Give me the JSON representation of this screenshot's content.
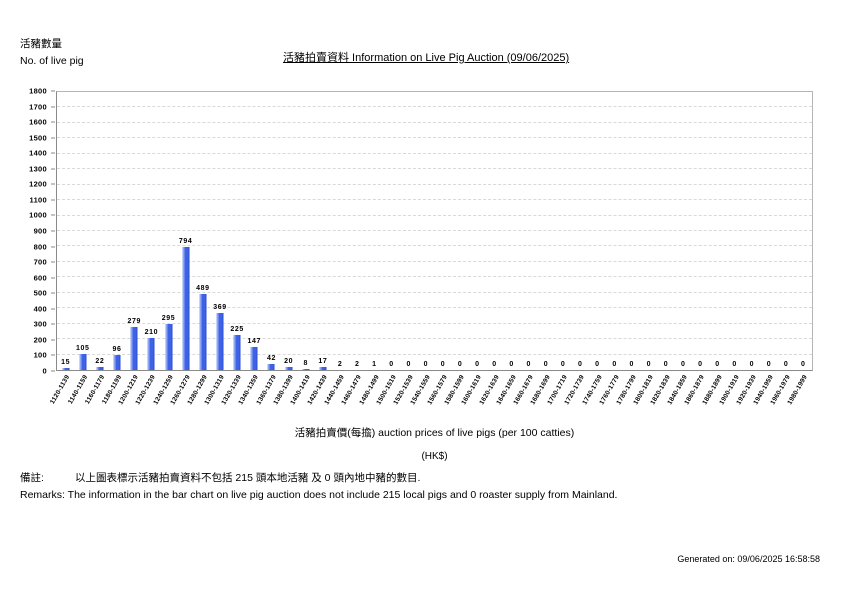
{
  "header": {
    "ylabel_zh": "活豬數量",
    "ylabel_en": "No. of live pig",
    "title": "活豬拍賣資料 Information on Live Pig Auction (09/06/2025)"
  },
  "chart_data": {
    "type": "bar",
    "title": "活豬拍賣資料 Information on Live Pig Auction (09/06/2025)",
    "ylabel": "活豬數量 No. of live pig",
    "xlabel": "活豬拍賣價(每擔) auction prices of live pigs (per 100 catties)",
    "xlabel_unit": "(HK$)",
    "ylim": [
      0,
      1800
    ],
    "ytick_step": 100,
    "grid": "horizontal-dashed",
    "legend": "none",
    "bar_color": "#3d62e8",
    "categories": [
      "1120-1139",
      "1140-1159",
      "1160-1179",
      "1180-1199",
      "1200-1219",
      "1220-1239",
      "1240-1259",
      "1260-1279",
      "1280-1299",
      "1300-1319",
      "1320-1339",
      "1340-1359",
      "1360-1379",
      "1380-1399",
      "1400-1419",
      "1420-1439",
      "1440-1459",
      "1460-1479",
      "1480-1499",
      "1500-1519",
      "1520-1539",
      "1540-1559",
      "1560-1579",
      "1580-1599",
      "1600-1619",
      "1620-1639",
      "1640-1659",
      "1660-1679",
      "1680-1699",
      "1700-1719",
      "1720-1739",
      "1740-1759",
      "1760-1779",
      "1780-1799",
      "1800-1819",
      "1820-1839",
      "1840-1859",
      "1860-1879",
      "1880-1899",
      "1900-1919",
      "1920-1939",
      "1940-1959",
      "1960-1979",
      "1980-1999"
    ],
    "values": [
      15,
      105,
      22,
      96,
      279,
      210,
      295,
      794,
      489,
      369,
      225,
      147,
      42,
      20,
      8,
      17,
      2,
      2,
      1,
      0,
      0,
      0,
      0,
      0,
      0,
      0,
      0,
      0,
      0,
      0,
      0,
      0,
      0,
      0,
      0,
      0,
      0,
      0,
      0,
      0,
      0,
      0,
      0,
      0
    ]
  },
  "footer": {
    "remark_zh_label": "備註:",
    "remark_zh_text": "以上圖表標示活豬拍賣資料不包括 215 頭本地活豬 及 0 頭內地中豬的數目.",
    "remark_en": "Remarks: The information in the bar chart on live pig auction does not include 215 local pigs and 0 roaster supply from Mainland.",
    "generated": "Generated on: 09/06/2025 16:58:58"
  }
}
